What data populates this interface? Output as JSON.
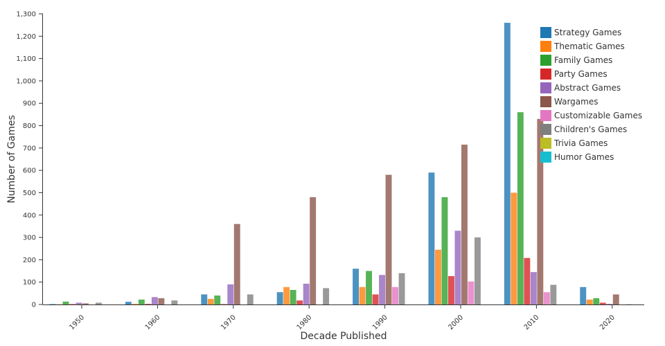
{
  "chart_data": {
    "type": "bar",
    "xlabel": "Decade Published",
    "ylabel": "Number of Games",
    "ylim": [
      0,
      1300
    ],
    "yticks": [
      0,
      100,
      200,
      300,
      400,
      500,
      600,
      700,
      800,
      900,
      1000,
      1100,
      1200,
      1300
    ],
    "ytick_labels": [
      "0",
      "100",
      "200",
      "300",
      "400",
      "500",
      "600",
      "700",
      "800",
      "900",
      "1,000",
      "1,100",
      "1,200",
      "1,300"
    ],
    "categories": [
      "1950",
      "1960",
      "1970",
      "1980",
      "1990",
      "2000",
      "2010",
      "2020"
    ],
    "grid": false,
    "legend_position": "top-right",
    "series": [
      {
        "name": "Strategy Games",
        "color": "#1f77b4",
        "values": [
          2,
          12,
          45,
          55,
          160,
          590,
          1260,
          78
        ]
      },
      {
        "name": "Thematic Games",
        "color": "#ff7f0e",
        "values": [
          1,
          3,
          25,
          78,
          78,
          245,
          500,
          22
        ]
      },
      {
        "name": "Family Games",
        "color": "#2ca02c",
        "values": [
          13,
          22,
          40,
          65,
          150,
          480,
          860,
          28
        ]
      },
      {
        "name": "Party Games",
        "color": "#d62728",
        "values": [
          2,
          3,
          2,
          18,
          45,
          127,
          208,
          8
        ]
      },
      {
        "name": "Abstract Games",
        "color": "#9467bd",
        "values": [
          8,
          33,
          90,
          93,
          132,
          330,
          145,
          3
        ]
      },
      {
        "name": "Wargames",
        "color": "#8c564b",
        "values": [
          5,
          28,
          360,
          480,
          580,
          715,
          830,
          45
        ]
      },
      {
        "name": "Customizable Games",
        "color": "#e377c2",
        "values": [
          0,
          0,
          0,
          0,
          78,
          103,
          55,
          0
        ]
      },
      {
        "name": "Children's Games",
        "color": "#7f7f7f",
        "values": [
          8,
          18,
          45,
          73,
          140,
          300,
          88,
          1
        ]
      },
      {
        "name": "Trivia Games",
        "color": "#bcbd22",
        "values": [
          0,
          0,
          0,
          0,
          0,
          0,
          0,
          0
        ]
      },
      {
        "name": "Humor Games",
        "color": "#17becf",
        "values": [
          0,
          0,
          0,
          0,
          0,
          0,
          0,
          0
        ]
      }
    ]
  }
}
